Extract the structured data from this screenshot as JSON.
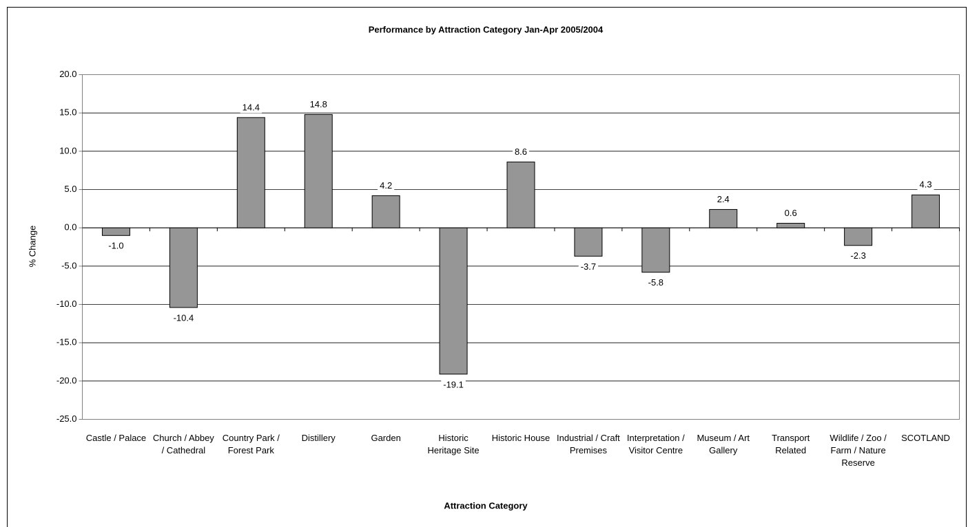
{
  "chart_data": {
    "type": "bar",
    "title": "Performance by Attraction Category Jan-Apr 2005/2004",
    "x_label": "Attraction Category",
    "y_label": "% Change",
    "categories": [
      "Castle / Palace",
      "Church / Abbey / Cathedral",
      "Country Park / Forest Park",
      "Distillery",
      "Garden",
      "Historic Heritage Site",
      "Historic House",
      "Industrial / Craft Premises",
      "Interpretation / Visitor Centre",
      "Museum / Art Gallery",
      "Transport Related",
      "Wildlife / Zoo / Farm / Nature Reserve",
      "SCOTLAND"
    ],
    "values": [
      -1.0,
      -10.4,
      14.4,
      14.8,
      4.2,
      -19.1,
      8.6,
      -3.7,
      -5.8,
      2.4,
      0.6,
      -2.3,
      4.3
    ],
    "value_labels": [
      "-1.0",
      "-10.4",
      "14.4",
      "14.8",
      "4.2",
      "-19.1",
      "8.6",
      "-3.7",
      "-5.8",
      "2.4",
      "0.6",
      "-2.3",
      "4.3"
    ],
    "color": "#969696",
    "ylim": [
      -25,
      20
    ],
    "yticks": [
      {
        "value": -25,
        "label": "-25.0"
      },
      {
        "value": -20,
        "label": "-20.0"
      },
      {
        "value": -15,
        "label": "-15.0"
      },
      {
        "value": -10,
        "label": "-10.0"
      },
      {
        "value": -5,
        "label": "-5.0"
      },
      {
        "value": 0,
        "label": "0.0"
      },
      {
        "value": 5,
        "label": "5.0"
      },
      {
        "value": 10,
        "label": "10.0"
      },
      {
        "value": 15,
        "label": "15.0"
      },
      {
        "value": 20,
        "label": "20.0"
      }
    ],
    "grid": true
  }
}
